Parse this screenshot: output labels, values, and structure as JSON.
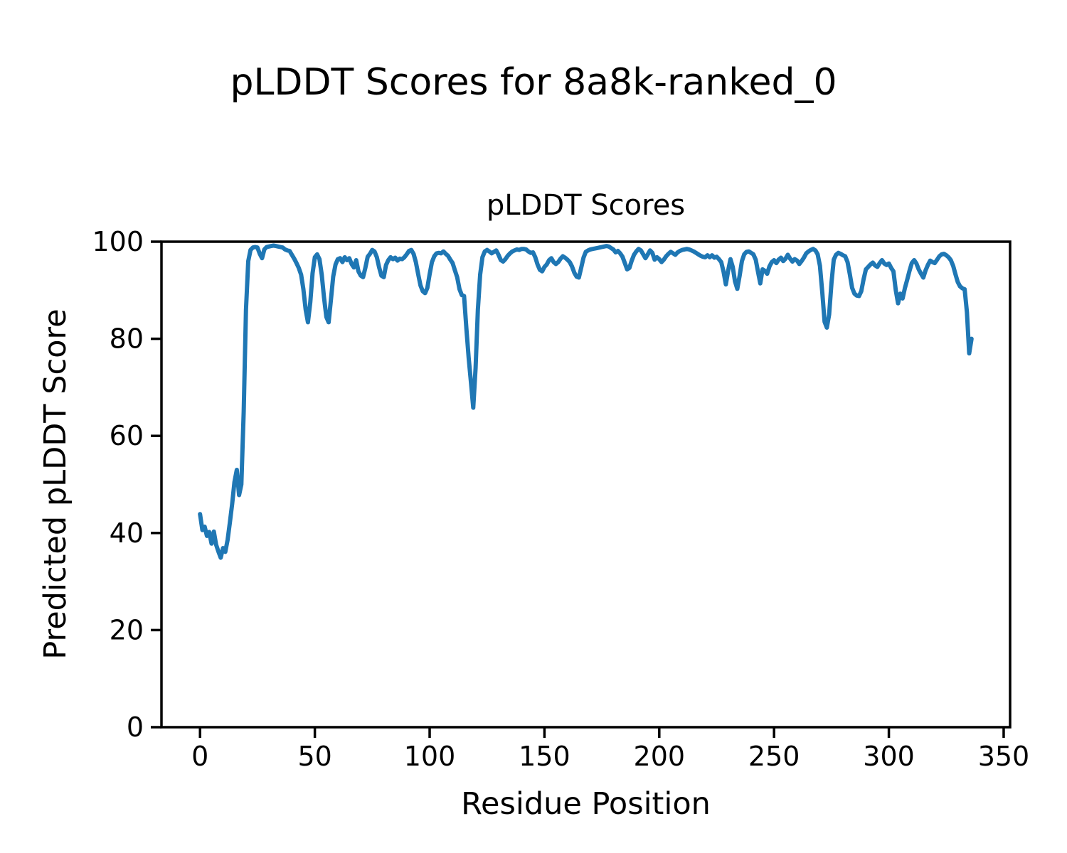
{
  "figure": {
    "title": "pLDDT Scores for 8a8k-ranked_0"
  },
  "chart_data": {
    "type": "line",
    "title": "pLDDT Scores",
    "xlabel": "Residue Position",
    "ylabel": "Predicted pLDDT Score",
    "xlim": [
      -16.8,
      352.8
    ],
    "ylim": [
      0,
      100
    ],
    "xticks": [
      0,
      50,
      100,
      150,
      200,
      250,
      300,
      350
    ],
    "yticks": [
      0,
      20,
      40,
      60,
      80,
      100
    ],
    "grid": false,
    "legend": "none",
    "line_color": "#1f77b4",
    "line_width": 6,
    "series": [
      {
        "name": "pLDDT",
        "x0": 0,
        "x_step": 1,
        "values": [
          43.9,
          40.6,
          41.3,
          39.4,
          40.2,
          37.8,
          40.3,
          37.6,
          36.2,
          34.9,
          36.9,
          36.1,
          38.6,
          42.2,
          46.0,
          50.5,
          53.0,
          47.8,
          50.0,
          65.0,
          86.0,
          96.0,
          98.3,
          98.8,
          98.9,
          98.8,
          97.5,
          96.6,
          98.4,
          98.9,
          99.0,
          99.1,
          99.2,
          99.1,
          99.0,
          98.9,
          98.8,
          98.4,
          98.2,
          98.1,
          97.3,
          96.5,
          95.6,
          94.6,
          93.2,
          90.2,
          86.0,
          83.4,
          87.5,
          93.5,
          96.8,
          97.4,
          96.4,
          93.2,
          88.5,
          84.5,
          83.4,
          88.0,
          92.8,
          95.3,
          96.4,
          96.6,
          95.8,
          96.8,
          96.2,
          96.6,
          95.4,
          94.7,
          96.2,
          93.9,
          93.0,
          92.7,
          94.6,
          96.9,
          97.5,
          98.3,
          98.0,
          96.8,
          94.7,
          93.0,
          92.7,
          95.2,
          96.2,
          96.8,
          96.4,
          96.7,
          96.1,
          96.5,
          96.4,
          96.8,
          97.4,
          98.1,
          98.3,
          97.5,
          95.8,
          93.3,
          91.0,
          89.8,
          89.4,
          90.5,
          93.3,
          95.8,
          97.0,
          97.6,
          97.7,
          97.6,
          98.0,
          97.5,
          97.1,
          96.3,
          95.6,
          94.1,
          92.7,
          90.2,
          89.0,
          88.8,
          82.0,
          76.0,
          71.0,
          65.8,
          74.0,
          86.0,
          93.2,
          96.8,
          98.0,
          98.3,
          98.0,
          97.6,
          97.9,
          98.2,
          97.3,
          96.2,
          95.9,
          96.4,
          97.1,
          97.6,
          98.0,
          98.2,
          98.4,
          98.3,
          98.5,
          98.5,
          98.4,
          98.0,
          97.7,
          97.8,
          96.8,
          95.3,
          94.2,
          93.9,
          94.8,
          95.3,
          96.2,
          96.6,
          95.8,
          95.4,
          95.8,
          96.5,
          97.0,
          96.7,
          96.3,
          95.8,
          94.9,
          93.6,
          92.8,
          92.6,
          94.6,
          96.7,
          97.9,
          98.2,
          98.4,
          98.5,
          98.6,
          98.7,
          98.8,
          98.9,
          99.0,
          99.1,
          99.0,
          98.7,
          98.4,
          97.8,
          98.1,
          97.6,
          96.9,
          95.6,
          94.3,
          94.6,
          96.1,
          97.3,
          98.0,
          98.5,
          98.2,
          97.4,
          96.6,
          97.4,
          98.2,
          97.7,
          96.3,
          96.8,
          96.4,
          95.8,
          96.3,
          97.0,
          97.5,
          97.9,
          97.6,
          97.3,
          97.8,
          98.1,
          98.3,
          98.4,
          98.5,
          98.4,
          98.2,
          98.0,
          97.7,
          97.4,
          97.1,
          96.9,
          96.8,
          97.2,
          96.8,
          97.2,
          96.7,
          96.9,
          96.4,
          95.8,
          93.8,
          91.2,
          94.0,
          96.4,
          94.8,
          91.8,
          90.3,
          93.0,
          96.0,
          97.4,
          97.9,
          98.0,
          97.7,
          97.4,
          96.3,
          93.8,
          91.4,
          94.3,
          94.0,
          93.4,
          94.9,
          95.8,
          96.2,
          95.6,
          96.3,
          96.7,
          96.0,
          96.5,
          97.3,
          96.5,
          95.9,
          96.4,
          96.1,
          95.4,
          96.0,
          96.7,
          97.6,
          98.0,
          98.3,
          98.5,
          98.2,
          97.4,
          95.0,
          89.5,
          83.5,
          82.3,
          85.0,
          91.5,
          96.3,
          97.3,
          97.7,
          97.5,
          97.2,
          97.0,
          95.8,
          93.3,
          90.5,
          89.3,
          88.9,
          88.8,
          89.8,
          92.3,
          94.3,
          94.8,
          95.3,
          95.7,
          95.1,
          94.8,
          95.6,
          96.2,
          95.5,
          95.2,
          95.5,
          94.6,
          93.9,
          90.0,
          87.3,
          89.3,
          88.3,
          90.5,
          92.2,
          94.0,
          95.6,
          96.2,
          95.5,
          94.3,
          93.4,
          92.6,
          94.1,
          95.2,
          96.1,
          95.8,
          95.6,
          96.3,
          97.0,
          97.4,
          97.5,
          97.2,
          96.8,
          96.2,
          95.0,
          93.3,
          91.7,
          90.8,
          90.4,
          90.2,
          85.5,
          77.0,
          80.0
        ]
      }
    ]
  }
}
